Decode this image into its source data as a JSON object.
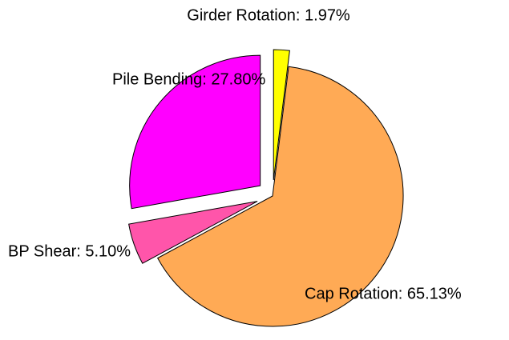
{
  "chart_data": {
    "type": "pie",
    "values": [
      1.97,
      65.13,
      5.1,
      27.8
    ],
    "value_labels": [
      "Girder Rotation: 1.97%",
      "Cap Rotation: 65.13%",
      "BP Shear: 5.10%",
      "Pile Bending: 27.80%"
    ],
    "colors": [
      "#ffff00",
      "#ffaa55",
      "#ff55aa",
      "#ff00ff"
    ],
    "explode": [
      true,
      false,
      true,
      true
    ]
  }
}
